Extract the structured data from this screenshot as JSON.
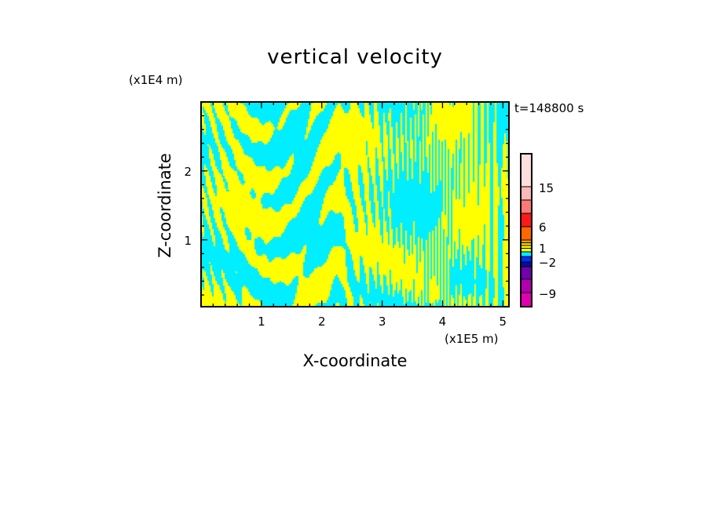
{
  "chart_data": {
    "type": "heatmap",
    "title": "vertical velocity",
    "xlabel": "X-coordinate",
    "ylabel": "Z-coordinate",
    "x_unit": "(x1E5 m)",
    "y_unit": "(x1E4 m)",
    "time_label": "t=148800 s",
    "xlim": [
      0,
      5.1
    ],
    "ylim": [
      0.03,
      3.0
    ],
    "x_ticks": [
      "1",
      "2",
      "3",
      "4",
      "5"
    ],
    "y_ticks": [
      "1",
      "2"
    ],
    "colorbar": {
      "tick_labels": [
        "15",
        "6",
        "1",
        "−2",
        "−9"
      ],
      "colors": [
        "#ffdede",
        "#ffb8b8",
        "#ff7878",
        "#ff1a1a",
        "#ff6600",
        "#ffa000",
        "#ffd000",
        "#ffff00",
        "#ffff00",
        "#00eeff",
        "#0030ff",
        "#0010a0",
        "#7000b0",
        "#b000b0",
        "#e000b0"
      ]
    },
    "field_colors": {
      "positive": "#ffff00",
      "negative": "#00eeff",
      "strong_negative": "#0030ff"
    }
  }
}
